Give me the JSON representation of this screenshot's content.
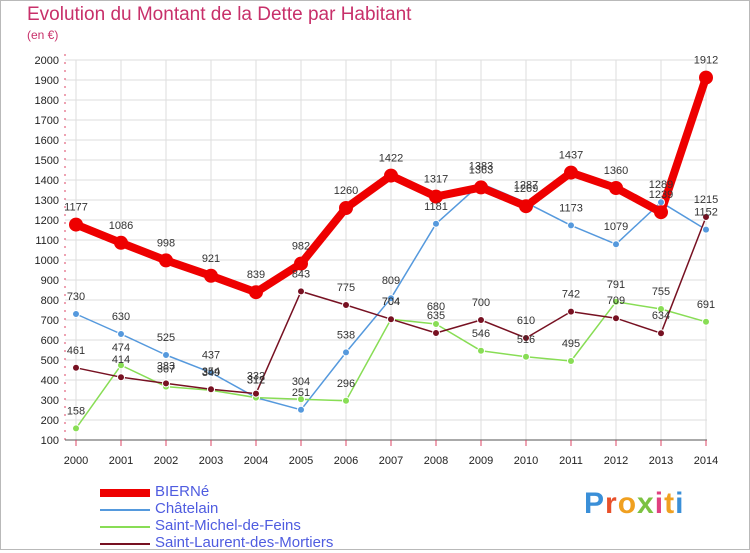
{
  "chart_data": {
    "type": "line",
    "title": "Evolution du Montant de la Dette par Habitant",
    "subtitle": "(en €)",
    "x": [
      "2000",
      "2001",
      "2002",
      "2003",
      "2004",
      "2005",
      "2006",
      "2007",
      "2008",
      "2009",
      "2010",
      "2011",
      "2012",
      "2013",
      "2014"
    ],
    "yticks": [
      100,
      200,
      300,
      400,
      500,
      600,
      700,
      800,
      900,
      1000,
      1100,
      1200,
      1300,
      1400,
      1500,
      1600,
      1700,
      1800,
      1900,
      2000
    ],
    "ylim": [
      100,
      2000
    ],
    "grid": true,
    "legend_position": "bottom-left",
    "series": [
      {
        "name": "BIERNé",
        "color": "#ee0000",
        "values": [
          1177,
          1086,
          998,
          921,
          839,
          982,
          1260,
          1422,
          1317,
          1363,
          1269,
          1437,
          1360,
          1239,
          1912
        ]
      },
      {
        "name": "Châtelain",
        "color": "#5599dd",
        "values": [
          730,
          630,
          525,
          437,
          312,
          251,
          538,
          809,
          1181,
          1383,
          1287,
          1173,
          1079,
          1289,
          1152
        ]
      },
      {
        "name": "Saint-Michel-de-Feins",
        "color": "#88dd55",
        "values": [
          158,
          474,
          367,
          349,
          312,
          304,
          296,
          704,
          680,
          546,
          516,
          495,
          791,
          755,
          691
        ]
      },
      {
        "name": "Saint-Laurent-des-Mortiers",
        "color": "#771122",
        "values": [
          461,
          414,
          383,
          354,
          332,
          843,
          775,
          704,
          635,
          700,
          610,
          742,
          709,
          634,
          1215
        ]
      }
    ]
  },
  "logo": {
    "letters": [
      "P",
      "r",
      "o",
      "x",
      "i",
      "t",
      "i"
    ],
    "colors": [
      "#3a8fd8",
      "#e8502a",
      "#f0a020",
      "#7cc242",
      "#e04080",
      "#f0a020",
      "#3a8fd8"
    ]
  }
}
